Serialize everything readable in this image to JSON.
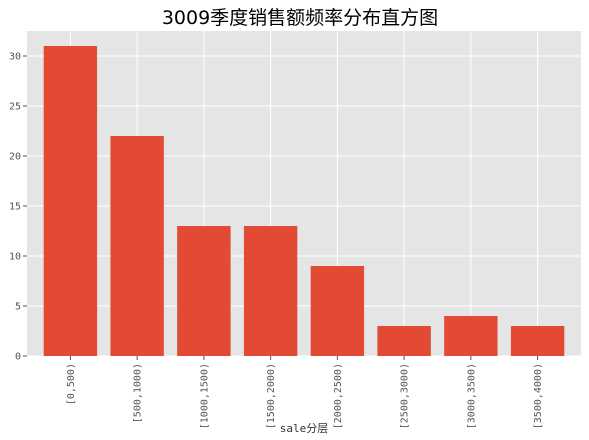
{
  "chart_data": {
    "type": "bar",
    "title": "3009季度销售额频率分布直方图",
    "xlabel": "sale分层",
    "ylabel": "",
    "categories": [
      "[0,500)",
      "[500,1000)",
      "[1000,1500)",
      "[1500,2000)",
      "[2000,2500)",
      "[2500,3000)",
      "[3000,3500)",
      "[3500,4000)"
    ],
    "values": [
      31,
      22,
      13,
      13,
      9,
      3,
      4,
      3
    ],
    "ylim": [
      0,
      32.5
    ],
    "yticks": [
      0,
      5,
      10,
      15,
      20,
      25,
      30
    ],
    "grid": true,
    "bar_color": "#E24A33",
    "background_color": "#E5E5E5",
    "grid_color": "#FFFFFF"
  }
}
